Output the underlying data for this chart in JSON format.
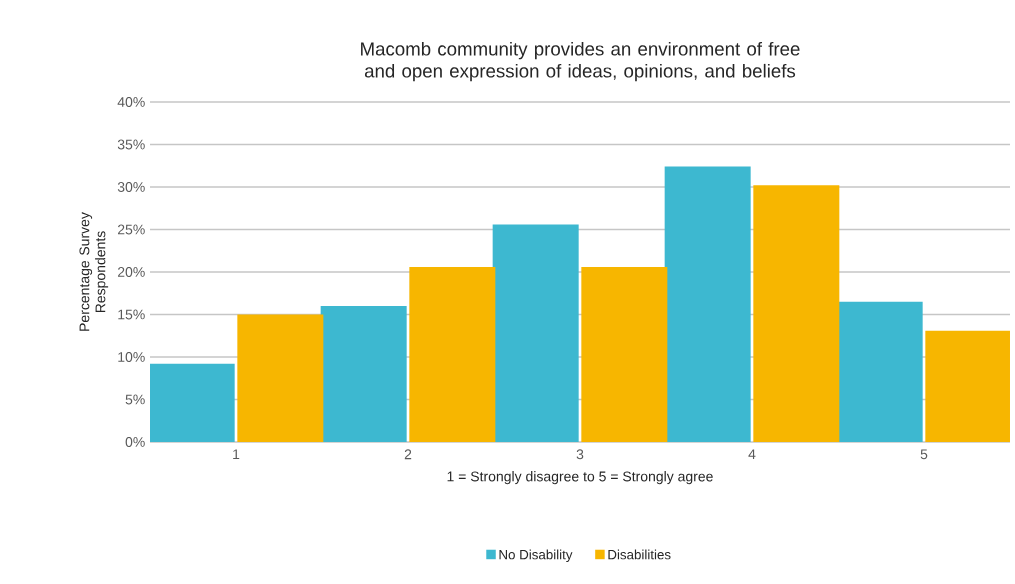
{
  "chart_data": {
    "type": "bar",
    "title": "Macomb community provides an environment of free and open expression of ideas, opinions, and beliefs",
    "xlabel": "1 = Strongly disagree to 5 = Strongly agree",
    "ylabel": "Percentage Survey Respondents",
    "categories": [
      "1",
      "2",
      "3",
      "4",
      "5"
    ],
    "series": [
      {
        "name": "No Disability",
        "color": "#3db8d0",
        "values": [
          9.2,
          16.0,
          25.6,
          32.4,
          16.5
        ]
      },
      {
        "name": "Disabilities",
        "color": "#f7b600",
        "values": [
          15.0,
          20.6,
          20.6,
          30.2,
          13.1
        ]
      }
    ],
    "ylim": [
      0,
      40
    ],
    "yticks": [
      {
        "value": 0,
        "label": "0%"
      },
      {
        "value": 5,
        "label": "5%"
      },
      {
        "value": 10,
        "label": "10%"
      },
      {
        "value": 15,
        "label": "15%"
      },
      {
        "value": 20,
        "label": "20%"
      },
      {
        "value": 25,
        "label": "25%"
      },
      {
        "value": 30,
        "label": "30%"
      },
      {
        "value": 35,
        "label": "35%"
      },
      {
        "value": 40,
        "label": "40%"
      }
    ],
    "grid": "y",
    "legend": "bottom"
  }
}
